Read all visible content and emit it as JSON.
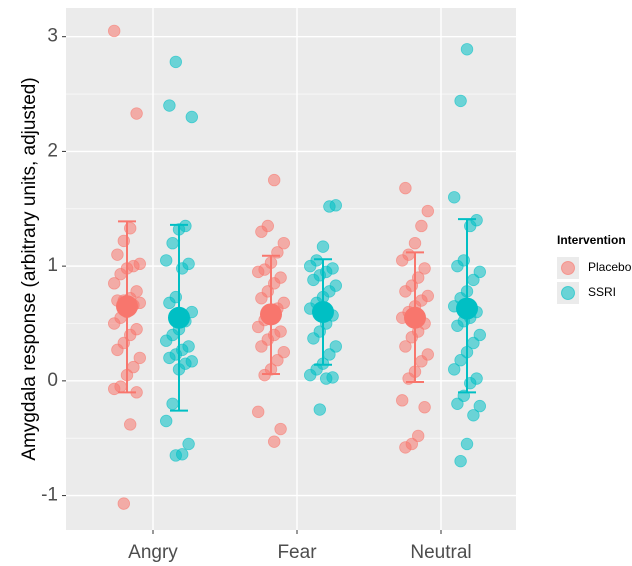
{
  "chart_data": {
    "type": "scatter",
    "ylabel": "Amygdala response (arbitrary units, adjusted)",
    "xlabel": "",
    "categories": [
      "Angry",
      "Fear",
      "Neutral"
    ],
    "ylim": [
      -1.3,
      3.25
    ],
    "yticks": [
      -1,
      0,
      1,
      2,
      3
    ],
    "grid": true,
    "legend_position": "right",
    "legend": {
      "title": "Intervention",
      "entries": [
        "Placebo",
        "SSRI"
      ]
    },
    "series": [
      {
        "name": "Placebo",
        "color": "#F8766D",
        "mean": [
          0.65,
          0.58,
          0.55
        ],
        "error_low": [
          -0.1,
          0.06,
          -0.01
        ],
        "error_high": [
          1.39,
          1.09,
          1.12
        ],
        "points": [
          [
            3.05,
            2.33,
            1.33,
            1.22,
            1.1,
            1.02,
            1.0,
            0.98,
            0.93,
            0.85,
            0.78,
            0.72,
            0.7,
            0.7,
            0.68,
            0.66,
            0.6,
            0.55,
            0.5,
            0.45,
            0.4,
            0.33,
            0.27,
            0.2,
            0.12,
            0.05,
            -0.05,
            -0.07,
            -0.1,
            -0.38,
            -1.07
          ],
          [
            1.75,
            1.35,
            1.3,
            1.2,
            1.12,
            1.03,
            0.97,
            0.95,
            0.9,
            0.85,
            0.78,
            0.72,
            0.68,
            0.63,
            0.58,
            0.53,
            0.47,
            0.43,
            0.4,
            0.36,
            0.3,
            0.25,
            0.18,
            0.1,
            0.05,
            -0.27,
            -0.42,
            -0.53
          ],
          [
            1.68,
            1.48,
            1.35,
            1.2,
            1.1,
            1.05,
            0.98,
            0.9,
            0.83,
            0.78,
            0.74,
            0.7,
            0.65,
            0.6,
            0.55,
            0.5,
            0.43,
            0.38,
            0.3,
            0.23,
            0.17,
            0.08,
            0.02,
            -0.17,
            -0.23,
            -0.48,
            -0.55,
            -0.58
          ]
        ]
      },
      {
        "name": "SSRI",
        "color": "#00BFC4",
        "mean": [
          0.55,
          0.6,
          0.63
        ],
        "error_low": [
          -0.26,
          0.14,
          -0.1
        ],
        "error_high": [
          1.36,
          1.06,
          1.41
        ],
        "points": [
          [
            2.78,
            2.4,
            2.3,
            1.35,
            1.32,
            1.2,
            1.05,
            1.02,
            0.98,
            0.73,
            0.68,
            0.6,
            0.52,
            0.45,
            0.4,
            0.35,
            0.3,
            0.27,
            0.23,
            0.2,
            0.17,
            0.15,
            0.1,
            -0.2,
            -0.35,
            -0.55,
            -0.64,
            -0.65
          ],
          [
            1.53,
            1.52,
            1.17,
            1.05,
            1.0,
            0.98,
            0.95,
            0.92,
            0.88,
            0.83,
            0.78,
            0.73,
            0.68,
            0.63,
            0.57,
            0.5,
            0.43,
            0.37,
            0.3,
            0.23,
            0.15,
            0.1,
            0.05,
            0.03,
            0.02,
            -0.25
          ],
          [
            2.89,
            2.44,
            1.6,
            1.4,
            1.35,
            1.05,
            1.0,
            0.95,
            0.88,
            0.78,
            0.72,
            0.65,
            0.6,
            0.55,
            0.52,
            0.48,
            0.4,
            0.33,
            0.25,
            0.18,
            0.1,
            0.02,
            -0.02,
            -0.13,
            -0.2,
            -0.22,
            -0.3,
            -0.55,
            -0.7
          ]
        ]
      }
    ]
  }
}
